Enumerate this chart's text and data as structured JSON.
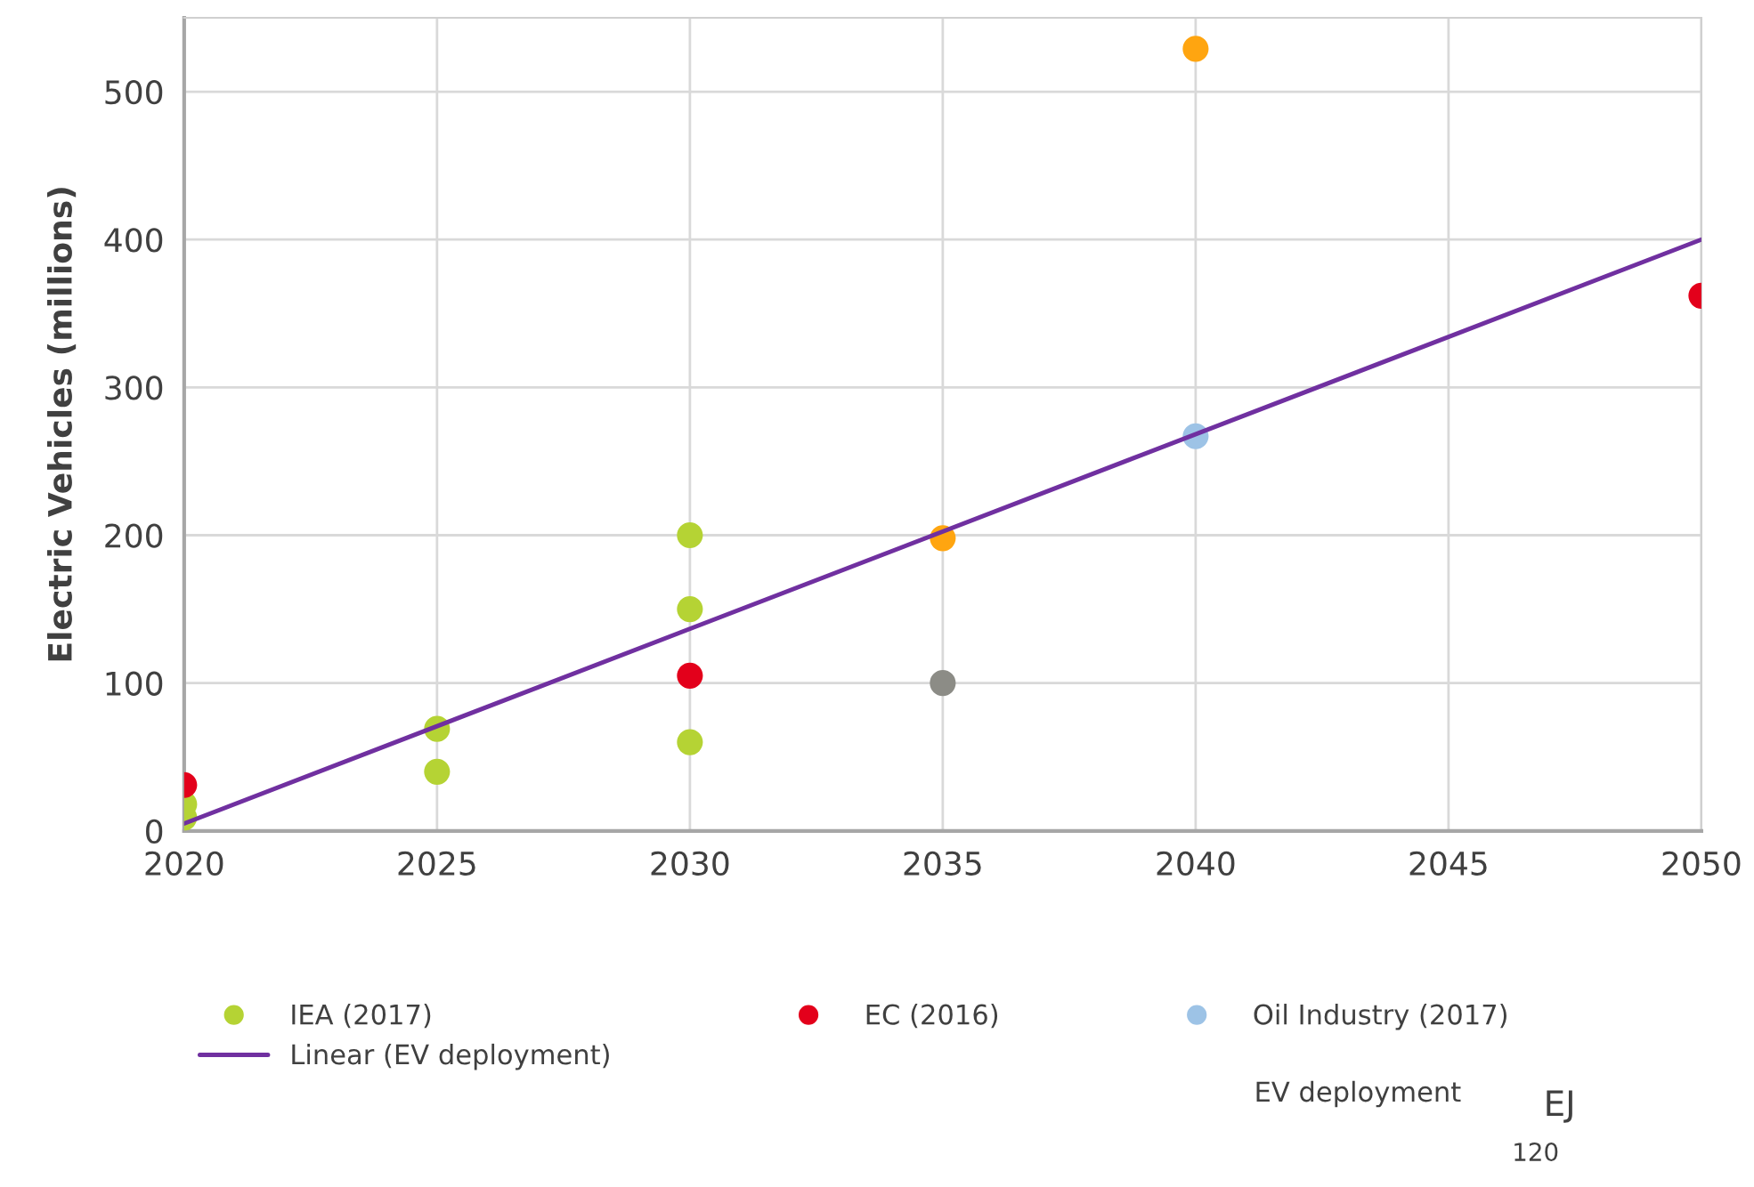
{
  "chart_data": {
    "type": "scatter",
    "ylabel": "Electric Vehicles (millions)",
    "xlim": [
      2020,
      2050
    ],
    "xticks": [
      2020,
      2025,
      2030,
      2035,
      2040,
      2045,
      2050
    ],
    "ylim": [
      0,
      550
    ],
    "yticks": [
      0,
      100,
      200,
      300,
      400,
      500
    ],
    "grid": true,
    "legend": "bottom",
    "marker": "circle",
    "series": [
      {
        "name": "IEA (2017)",
        "color": "#b5d334",
        "x": [
          2020,
          2020,
          2025,
          2025,
          2030,
          2030,
          2030
        ],
        "values": [
          9,
          18,
          40,
          69,
          60,
          150,
          200
        ]
      },
      {
        "name": "EC (2016)",
        "color": "#e3001b",
        "x": [
          2020,
          2030,
          2050
        ],
        "values": [
          31,
          105,
          362
        ]
      },
      {
        "name": "Oil Industry (2017)",
        "color": "#9dc3e6",
        "x": [
          2040
        ],
        "values": [
          267
        ]
      },
      {
        "color": "#ffa510",
        "x": [
          2035,
          2040
        ],
        "values": [
          198,
          529
        ]
      },
      {
        "color": "#8c8c86",
        "x": [
          2035
        ],
        "values": [
          100
        ]
      },
      {
        "name": "Linear (EV deployment)",
        "type": "line",
        "color": "#7030a0",
        "marker": "none",
        "line_style": "solid",
        "x": [
          2020,
          2050
        ],
        "values": [
          5,
          400
        ]
      }
    ],
    "annotations": [
      "EV deployment",
      "EJ",
      "120"
    ]
  }
}
